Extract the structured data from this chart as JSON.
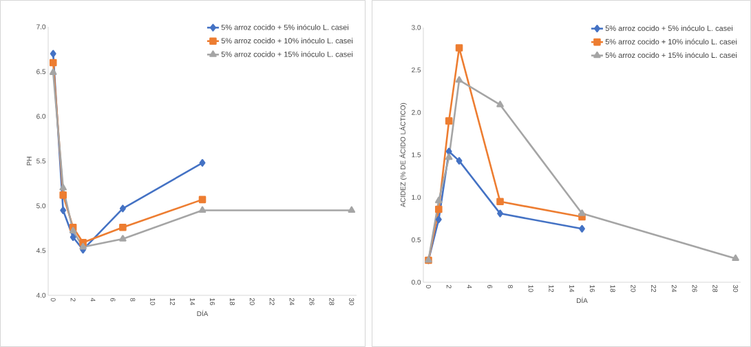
{
  "chart_data": [
    {
      "type": "line",
      "xlabel": "DÍA",
      "ylabel": "PH",
      "xlim": [
        -0.5,
        30.5
      ],
      "ylim": [
        4.0,
        7.0
      ],
      "xticks": [
        0,
        2,
        4,
        6,
        8,
        10,
        12,
        14,
        16,
        18,
        20,
        22,
        24,
        26,
        28,
        30
      ],
      "yticks": [
        {
          "value": 4.0,
          "label": "4.0"
        },
        {
          "value": 4.5,
          "label": "4.5"
        },
        {
          "value": 5.0,
          "label": "5.0"
        },
        {
          "value": 5.5,
          "label": "5.5"
        },
        {
          "value": 6.0,
          "label": "6.0"
        },
        {
          "value": 6.5,
          "label": "6.5"
        },
        {
          "value": 7.0,
          "label": "7.0"
        }
      ],
      "legend": "top right",
      "line_style": "solid",
      "series": [
        {
          "name": "5% arroz cocido + 5% inóculo L. casei",
          "color": "#4472c4",
          "marker": "diamond",
          "x": [
            0,
            1,
            2,
            3,
            7,
            15
          ],
          "values": [
            6.7,
            4.95,
            4.65,
            4.51,
            4.97,
            5.48
          ]
        },
        {
          "name": "5% arroz cocido + 10% inóculo L. casei",
          "color": "#ed7d31",
          "marker": "square",
          "x": [
            0,
            1,
            2,
            3,
            7,
            15
          ],
          "values": [
            6.6,
            5.12,
            4.76,
            4.59,
            4.76,
            5.07
          ]
        },
        {
          "name": "5% arroz cocido + 15% inóculo L. casei",
          "color": "#a5a5a5",
          "marker": "triangle",
          "x": [
            0,
            1,
            2,
            3,
            7,
            15,
            30
          ],
          "values": [
            6.49,
            5.2,
            4.72,
            4.54,
            4.63,
            4.95,
            4.95
          ]
        }
      ]
    },
    {
      "type": "line",
      "xlabel": "DÍA",
      "ylabel": "ACIDEZ (% DE ÁCIDO LÁCTICO)",
      "xlim": [
        -0.5,
        30.5
      ],
      "ylim": [
        0.0,
        3.0
      ],
      "xticks": [
        0,
        2,
        4,
        6,
        8,
        10,
        12,
        14,
        16,
        18,
        20,
        22,
        24,
        26,
        28,
        30
      ],
      "yticks": [
        {
          "value": 0.0,
          "label": "0.0"
        },
        {
          "value": 0.5,
          "label": "0.5"
        },
        {
          "value": 1.0,
          "label": "1.0"
        },
        {
          "value": 1.5,
          "label": "1.5"
        },
        {
          "value": 2.0,
          "label": "2.0"
        },
        {
          "value": 2.5,
          "label": "2.5"
        },
        {
          "value": 3.0,
          "label": "3.0"
        }
      ],
      "legend": "top right",
      "line_style": "solid",
      "series": [
        {
          "name": "5% arroz cocido + 5% inóculo L. casei",
          "color": "#4472c4",
          "marker": "diamond",
          "x": [
            0,
            1,
            2,
            3,
            7,
            15
          ],
          "values": [
            0.26,
            0.74,
            1.54,
            1.43,
            0.81,
            0.63
          ]
        },
        {
          "name": "5% arroz cocido + 10% inóculo L. casei",
          "color": "#ed7d31",
          "marker": "square",
          "x": [
            0,
            1,
            2,
            3,
            7,
            15
          ],
          "values": [
            0.26,
            0.86,
            1.9,
            2.76,
            0.95,
            0.77
          ]
        },
        {
          "name": "5% arroz cocido + 15% inóculo L. casei",
          "color": "#a5a5a5",
          "marker": "triangle",
          "x": [
            0,
            1,
            2,
            3,
            7,
            15,
            30
          ],
          "values": [
            0.26,
            0.96,
            1.47,
            2.38,
            2.09,
            0.81,
            0.28
          ]
        }
      ]
    }
  ]
}
